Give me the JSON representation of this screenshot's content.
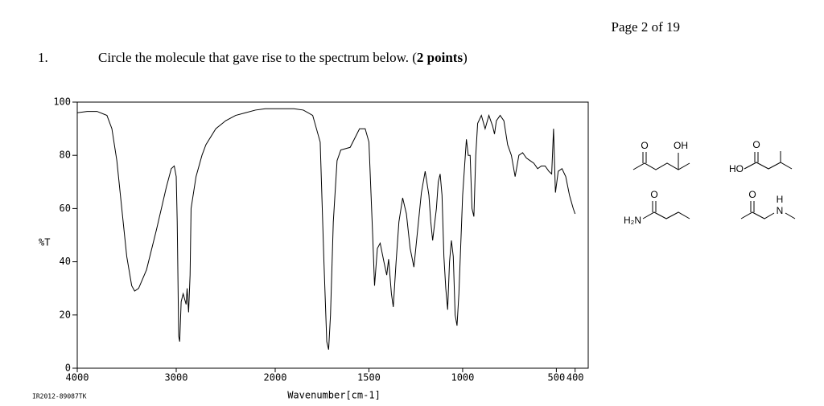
{
  "header": {
    "page": "Page 2 of 19"
  },
  "question": {
    "number": "1.",
    "text_before": "Circle the molecule that gave rise to the spectrum below. (",
    "bold": "2 points",
    "text_after": ")"
  },
  "chart_data": {
    "type": "line",
    "y_label": "%T",
    "x_label": "Wavenumber[cm-1]",
    "code": "IR2012-89087TK",
    "color": "#000000",
    "xlim": [
      4000,
      330
    ],
    "ylim": [
      0,
      100
    ],
    "xticks": [
      4000,
      3000,
      2000,
      1500,
      1000,
      500,
      400
    ],
    "yticks": [
      0,
      20,
      40,
      60,
      80,
      100
    ],
    "x": [
      4000,
      3900,
      3800,
      3700,
      3650,
      3600,
      3550,
      3500,
      3450,
      3420,
      3380,
      3300,
      3200,
      3100,
      3050,
      3020,
      3000,
      2990,
      2975,
      2965,
      2950,
      2930,
      2900,
      2890,
      2875,
      2860,
      2850,
      2800,
      2740,
      2700,
      2600,
      2500,
      2400,
      2300,
      2200,
      2100,
      2000,
      1900,
      1850,
      1800,
      1760,
      1740,
      1725,
      1715,
      1705,
      1690,
      1670,
      1650,
      1600,
      1550,
      1520,
      1500,
      1480,
      1470,
      1455,
      1440,
      1420,
      1405,
      1395,
      1380,
      1370,
      1355,
      1340,
      1320,
      1300,
      1280,
      1260,
      1240,
      1220,
      1200,
      1180,
      1170,
      1160,
      1140,
      1130,
      1120,
      1110,
      1100,
      1090,
      1080,
      1070,
      1060,
      1050,
      1040,
      1030,
      1020,
      1000,
      980,
      970,
      960,
      950,
      940,
      930,
      920,
      900,
      880,
      860,
      840,
      830,
      820,
      800,
      780,
      760,
      740,
      730,
      720,
      710,
      700,
      680,
      660,
      640,
      620,
      600,
      580,
      560,
      540,
      525,
      515,
      505,
      490,
      470,
      450,
      430,
      410,
      400
    ],
    "values": [
      96,
      96.5,
      96.5,
      95,
      90,
      78,
      60,
      42,
      31,
      29,
      30,
      37,
      52,
      68,
      75,
      76,
      72,
      55,
      12,
      10,
      25,
      28,
      24,
      30,
      21,
      35,
      60,
      72,
      80,
      84,
      90,
      93,
      95,
      96,
      97,
      97.5,
      97.5,
      97.5,
      97,
      95,
      85,
      40,
      10,
      7,
      20,
      55,
      78,
      82,
      83,
      90,
      90,
      85,
      50,
      31,
      45,
      47,
      40,
      35,
      41,
      28,
      23,
      40,
      55,
      64,
      58,
      45,
      38,
      52,
      66,
      74,
      65,
      55,
      48,
      60,
      70,
      73,
      65,
      42,
      30,
      22,
      40,
      48,
      42,
      20,
      16,
      28,
      65,
      86,
      80,
      80,
      60,
      57,
      80,
      92,
      95,
      90,
      95,
      91,
      88,
      93,
      95,
      93,
      84,
      80,
      76,
      72,
      76,
      80,
      81,
      79,
      78,
      77,
      75,
      76,
      76,
      74,
      73,
      90,
      66,
      74,
      75,
      72,
      65,
      60,
      58
    ]
  },
  "molecules": [
    {
      "atoms": [
        "O",
        "OH"
      ]
    },
    {
      "atoms": [
        "O",
        "HO"
      ]
    },
    {
      "atoms": [
        "O",
        "H₂N"
      ]
    },
    {
      "atoms": [
        "O",
        "H",
        "N"
      ]
    }
  ]
}
